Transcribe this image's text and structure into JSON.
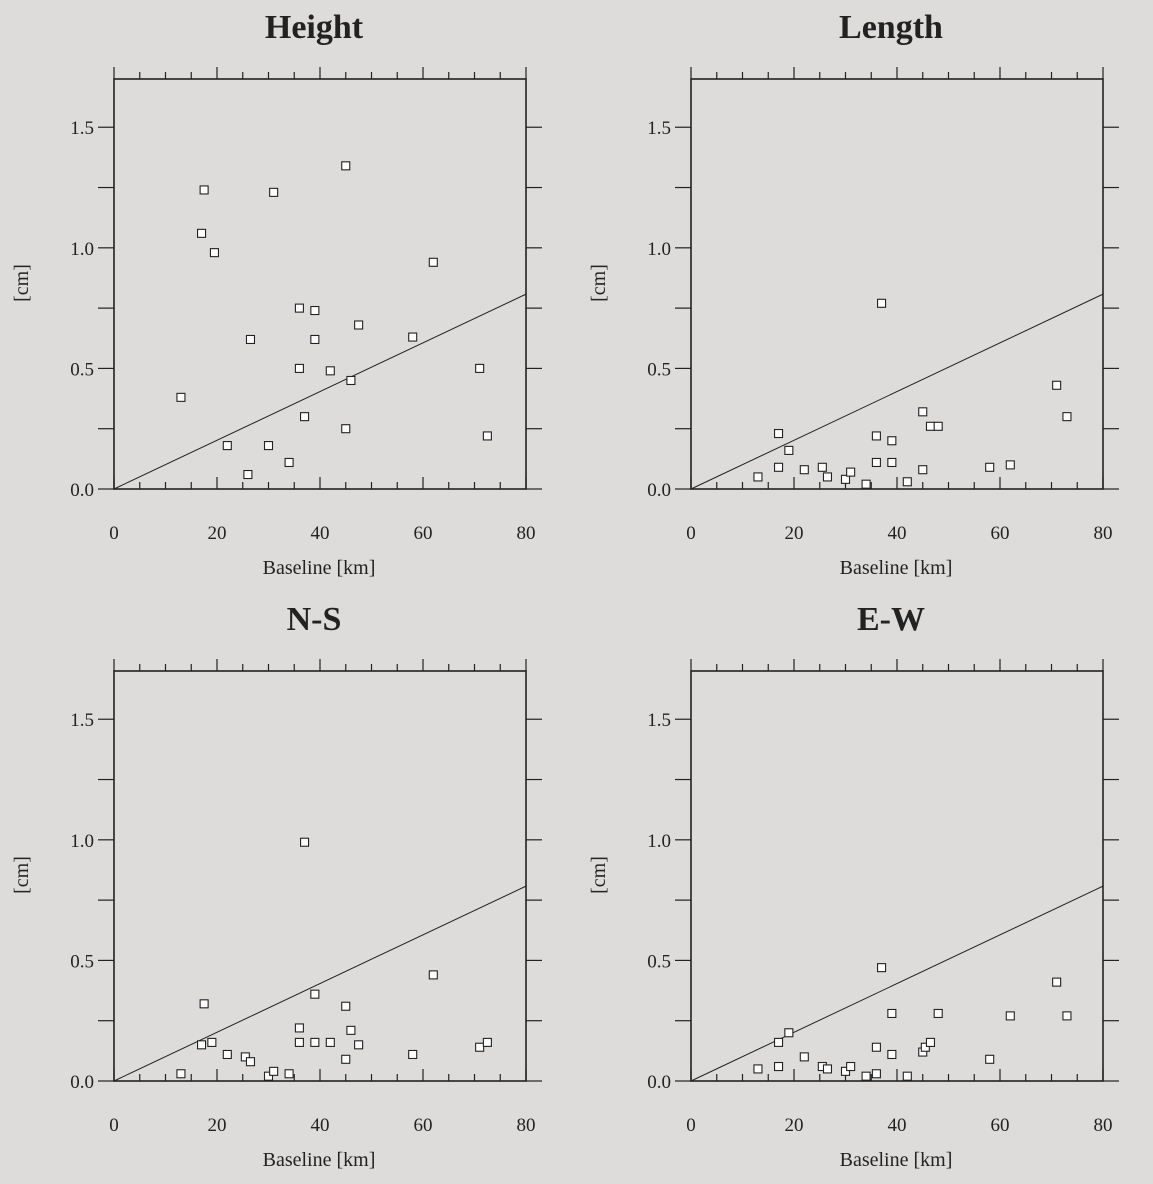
{
  "chart_data": [
    {
      "type": "scatter",
      "title": "Height",
      "xlabel": "Baseline [km]",
      "ylabel": "[cm]",
      "xlim": [
        0,
        80
      ],
      "ylim": [
        0,
        1.7
      ],
      "xticks": [
        "0",
        "20",
        "40",
        "60",
        "80"
      ],
      "yticks": [
        "0.0",
        "0.5",
        "1.0",
        "1.5"
      ],
      "reference_line": {
        "slope_cm_per_km": 0.0101
      },
      "points": [
        {
          "x": 13,
          "y": 0.38
        },
        {
          "x": 17.5,
          "y": 1.24
        },
        {
          "x": 17,
          "y": 1.06
        },
        {
          "x": 19.5,
          "y": 0.98
        },
        {
          "x": 22,
          "y": 0.18
        },
        {
          "x": 26,
          "y": 0.06
        },
        {
          "x": 26.5,
          "y": 0.62
        },
        {
          "x": 30,
          "y": 0.18
        },
        {
          "x": 31,
          "y": 1.23
        },
        {
          "x": 34,
          "y": 0.11
        },
        {
          "x": 36,
          "y": 0.75
        },
        {
          "x": 36,
          "y": 0.5
        },
        {
          "x": 37,
          "y": 0.3
        },
        {
          "x": 39,
          "y": 0.74
        },
        {
          "x": 39,
          "y": 0.62
        },
        {
          "x": 42,
          "y": 0.49
        },
        {
          "x": 45,
          "y": 1.34
        },
        {
          "x": 45,
          "y": 0.25
        },
        {
          "x": 46,
          "y": 0.45
        },
        {
          "x": 47.5,
          "y": 0.68
        },
        {
          "x": 58,
          "y": 0.63
        },
        {
          "x": 62,
          "y": 0.94
        },
        {
          "x": 71,
          "y": 0.5
        },
        {
          "x": 72.5,
          "y": 0.22
        }
      ]
    },
    {
      "type": "scatter",
      "title": "Length",
      "xlabel": "Baseline [km]",
      "ylabel": "[cm]",
      "xlim": [
        0,
        80
      ],
      "ylim": [
        0,
        1.7
      ],
      "xticks": [
        "0",
        "20",
        "40",
        "60",
        "80"
      ],
      "yticks": [
        "0.0",
        "0.5",
        "1.0",
        "1.5"
      ],
      "reference_line": {
        "slope_cm_per_km": 0.0101
      },
      "points": [
        {
          "x": 13,
          "y": 0.05
        },
        {
          "x": 17,
          "y": 0.09
        },
        {
          "x": 17,
          "y": 0.23
        },
        {
          "x": 19,
          "y": 0.16
        },
        {
          "x": 22,
          "y": 0.08
        },
        {
          "x": 25.5,
          "y": 0.09
        },
        {
          "x": 26.5,
          "y": 0.05
        },
        {
          "x": 30,
          "y": 0.04
        },
        {
          "x": 31,
          "y": 0.07
        },
        {
          "x": 34,
          "y": 0.02
        },
        {
          "x": 36,
          "y": 0.22
        },
        {
          "x": 36,
          "y": 0.11
        },
        {
          "x": 37,
          "y": 0.77
        },
        {
          "x": 39,
          "y": 0.2
        },
        {
          "x": 39,
          "y": 0.11
        },
        {
          "x": 42,
          "y": 0.03
        },
        {
          "x": 45,
          "y": 0.32
        },
        {
          "x": 45,
          "y": 0.08
        },
        {
          "x": 46.5,
          "y": 0.26
        },
        {
          "x": 48,
          "y": 0.26
        },
        {
          "x": 58,
          "y": 0.09
        },
        {
          "x": 62,
          "y": 0.1
        },
        {
          "x": 71,
          "y": 0.43
        },
        {
          "x": 73,
          "y": 0.3
        }
      ]
    },
    {
      "type": "scatter",
      "title": "N-S",
      "xlabel": "Baseline [km]",
      "ylabel": "[cm]",
      "xlim": [
        0,
        80
      ],
      "ylim": [
        0,
        1.7
      ],
      "xticks": [
        "0",
        "20",
        "40",
        "60",
        "80"
      ],
      "yticks": [
        "0.0",
        "0.5",
        "1.0",
        "1.5"
      ],
      "reference_line": {
        "slope_cm_per_km": 0.0101
      },
      "points": [
        {
          "x": 13,
          "y": 0.03
        },
        {
          "x": 17,
          "y": 0.15
        },
        {
          "x": 17.5,
          "y": 0.32
        },
        {
          "x": 19,
          "y": 0.16
        },
        {
          "x": 22,
          "y": 0.11
        },
        {
          "x": 25.5,
          "y": 0.1
        },
        {
          "x": 26.5,
          "y": 0.08
        },
        {
          "x": 30,
          "y": 0.02
        },
        {
          "x": 31,
          "y": 0.04
        },
        {
          "x": 34,
          "y": 0.03
        },
        {
          "x": 36,
          "y": 0.22
        },
        {
          "x": 36,
          "y": 0.16
        },
        {
          "x": 37,
          "y": 0.99
        },
        {
          "x": 39,
          "y": 0.36
        },
        {
          "x": 39,
          "y": 0.16
        },
        {
          "x": 42,
          "y": 0.16
        },
        {
          "x": 45,
          "y": 0.31
        },
        {
          "x": 45,
          "y": 0.09
        },
        {
          "x": 46,
          "y": 0.21
        },
        {
          "x": 47.5,
          "y": 0.15
        },
        {
          "x": 58,
          "y": 0.11
        },
        {
          "x": 62,
          "y": 0.44
        },
        {
          "x": 71,
          "y": 0.14
        },
        {
          "x": 72.5,
          "y": 0.16
        }
      ]
    },
    {
      "type": "scatter",
      "title": "E-W",
      "xlabel": "Baseline [km]",
      "ylabel": "[cm]",
      "xlim": [
        0,
        80
      ],
      "ylim": [
        0,
        1.7
      ],
      "xticks": [
        "0",
        "20",
        "40",
        "60",
        "80"
      ],
      "yticks": [
        "0.0",
        "0.5",
        "1.0",
        "1.5"
      ],
      "reference_line": {
        "slope_cm_per_km": 0.0101
      },
      "points": [
        {
          "x": 13,
          "y": 0.05
        },
        {
          "x": 17,
          "y": 0.06
        },
        {
          "x": 17,
          "y": 0.16
        },
        {
          "x": 19,
          "y": 0.2
        },
        {
          "x": 22,
          "y": 0.1
        },
        {
          "x": 25.5,
          "y": 0.06
        },
        {
          "x": 26.5,
          "y": 0.05
        },
        {
          "x": 30,
          "y": 0.04
        },
        {
          "x": 31,
          "y": 0.06
        },
        {
          "x": 34,
          "y": 0.02
        },
        {
          "x": 36,
          "y": 0.14
        },
        {
          "x": 36,
          "y": 0.03
        },
        {
          "x": 37,
          "y": 0.47
        },
        {
          "x": 39,
          "y": 0.28
        },
        {
          "x": 39,
          "y": 0.11
        },
        {
          "x": 42,
          "y": 0.02
        },
        {
          "x": 45,
          "y": 0.12
        },
        {
          "x": 45.5,
          "y": 0.14
        },
        {
          "x": 46.5,
          "y": 0.16
        },
        {
          "x": 48,
          "y": 0.28
        },
        {
          "x": 58,
          "y": 0.09
        },
        {
          "x": 62,
          "y": 0.27
        },
        {
          "x": 71,
          "y": 0.41
        },
        {
          "x": 73,
          "y": 0.27
        }
      ]
    }
  ]
}
